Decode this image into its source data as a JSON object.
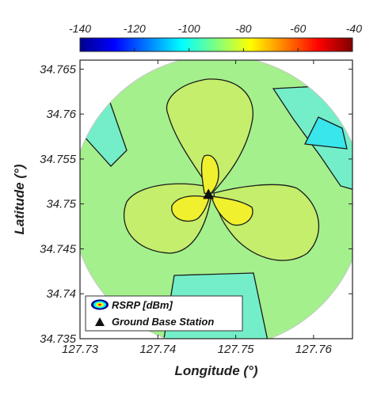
{
  "chart_data": {
    "type": "heatmap",
    "title": "",
    "xlabel": "Longitude (°)",
    "ylabel": "Latitude (°)",
    "xlim": [
      127.73,
      127.765
    ],
    "ylim": [
      34.735,
      34.766
    ],
    "x_ticks": [
      "127.73",
      "127.74",
      "127.75",
      "127.76"
    ],
    "y_ticks": [
      "34.735",
      "34.74",
      "34.745",
      "34.75",
      "34.755",
      "34.76",
      "34.765"
    ],
    "colorbar": {
      "min": -140,
      "max": -40,
      "ticks": [
        "-140",
        "-120",
        "-100",
        "-80",
        "-60",
        "-40"
      ],
      "colormap": "jet"
    },
    "coverage_shape": "circle",
    "ground_base_station": {
      "longitude": 127.7465,
      "latitude": 34.751
    },
    "contour_regions_rsrp_dbm": [
      {
        "region": "outer background",
        "value": -88
      },
      {
        "region": "far lobes (NW, NE, S)",
        "value": -95
      },
      {
        "region": "small pocket (NE)",
        "value": -97
      },
      {
        "region": "clover lobes",
        "value": -85
      },
      {
        "region": "inner lobes near station",
        "value": -74
      }
    ],
    "legend": {
      "position": "bottom-left",
      "entries": [
        {
          "label": "RSRP [dBm]",
          "marker": "contour-ellipse"
        },
        {
          "label": "Ground Base Station",
          "marker": "triangle"
        }
      ]
    },
    "colors": {
      "background_green": "#a4f08c",
      "lobe_green": "#c4ee6c",
      "inner_yellow": "#f0f02e",
      "far_cyan": "#74eec8",
      "pocket_cyan": "#38e6ec",
      "contour_line": "#1a1a1a"
    }
  }
}
